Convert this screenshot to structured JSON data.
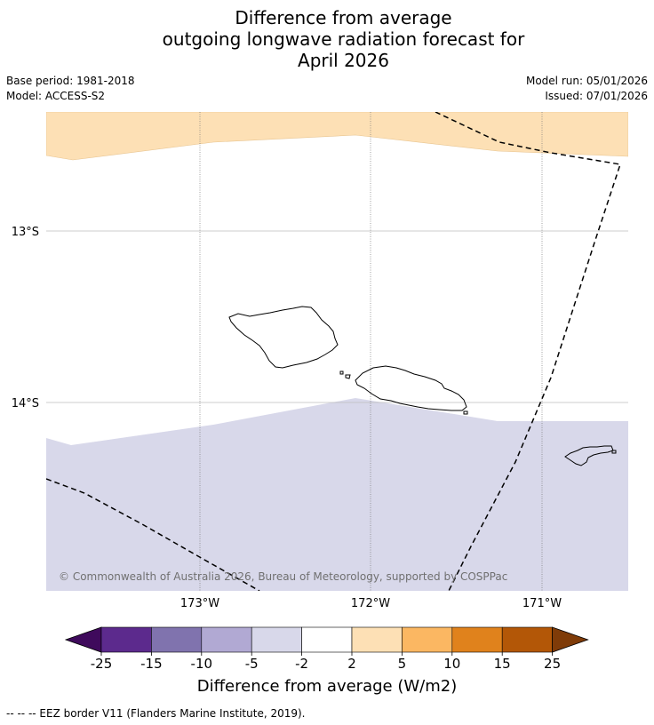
{
  "title": {
    "line1": "Difference from average",
    "line2": "outgoing longwave radiation forecast for",
    "line3": "April 2026"
  },
  "meta": {
    "base_period": "Base period: 1981-2018",
    "model": "Model: ACCESS-S2",
    "model_run": "Model run: 05/01/2026",
    "issued": "Issued: 07/01/2026"
  },
  "map": {
    "lat_labels": [
      "13°S",
      "14°S"
    ],
    "lon_labels": [
      "173°W",
      "172°W",
      "171°W"
    ],
    "copyright": "© Commonwealth of Australia 2026, Bureau of Meteorology, supported by COSPPac",
    "colors": {
      "positive_band": "#fde0b5",
      "negative_band": "#d8d8ea",
      "border": "#000000"
    }
  },
  "colorbar": {
    "tick_labels": [
      "-25",
      "-15",
      "-10",
      "-5",
      "-2",
      "2",
      "5",
      "10",
      "15",
      "25"
    ],
    "colors": [
      "#3f0a5c",
      "#5c2a8d",
      "#8073ae",
      "#b1a9d3",
      "#d8d8ea",
      "#ffffff",
      "#fde0b5",
      "#fbb762",
      "#e0821c",
      "#b35707",
      "#7f3b08"
    ],
    "label": "Difference from average (W/m2)"
  },
  "footnote": "--  --  -- EEZ border V11 (Flanders Marine Institute, 2019)."
}
